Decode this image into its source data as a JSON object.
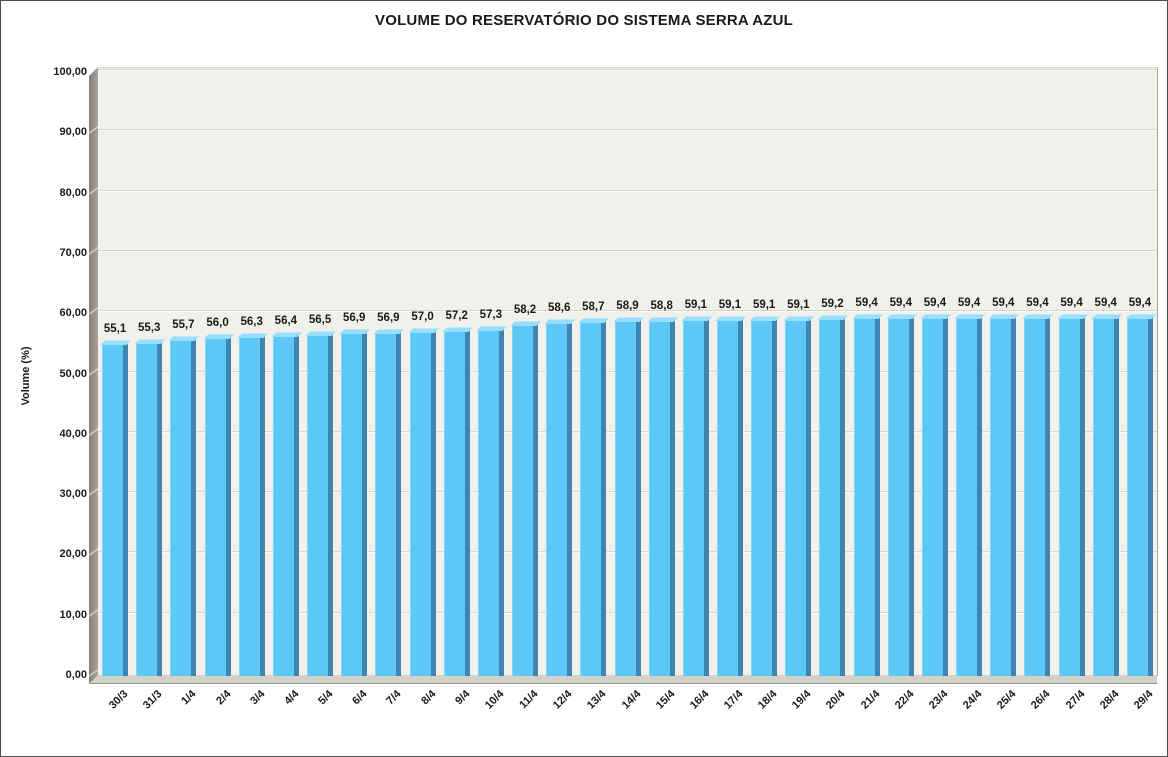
{
  "title": "VOLUME DO RESERVATÓRIO DO SISTEMA SERRA AZUL",
  "colors": {
    "bar_fill": "#5bc8f7",
    "bar_side": "#3f85af",
    "bar_top": "#9adefb",
    "plot_background": "#f2f0ea",
    "wall": "#8d8b83",
    "floor": "#d4d1c9",
    "gridline": "#d8d5cd",
    "text": "#1a1a1a"
  },
  "chart_data": {
    "type": "bar",
    "style": "3d-column",
    "title": "VOLUME DO RESERVATÓRIO DO SISTEMA SERRA AZUL",
    "xlabel": "",
    "ylabel": "Volume (%)",
    "ylim": [
      0,
      100
    ],
    "y_tick_step": 10,
    "y_tick_labels": [
      "0,00",
      "10,00",
      "20,00",
      "30,00",
      "40,00",
      "50,00",
      "60,00",
      "70,00",
      "80,00",
      "90,00",
      "100,00"
    ],
    "grid": true,
    "legend": "none",
    "categories": [
      "30/3",
      "31/3",
      "1/4",
      "2/4",
      "3/4",
      "4/4",
      "5/4",
      "6/4",
      "7/4",
      "8/4",
      "9/4",
      "10/4",
      "11/4",
      "12/4",
      "13/4",
      "14/4",
      "15/4",
      "16/4",
      "17/4",
      "18/4",
      "19/4",
      "20/4",
      "21/4",
      "22/4",
      "23/4",
      "24/4",
      "25/4",
      "26/4",
      "27/4",
      "28/4",
      "29/4"
    ],
    "values": [
      55.1,
      55.3,
      55.7,
      56.0,
      56.3,
      56.4,
      56.5,
      56.9,
      56.9,
      57.0,
      57.2,
      57.3,
      58.2,
      58.6,
      58.7,
      58.9,
      58.8,
      59.1,
      59.1,
      59.1,
      59.1,
      59.2,
      59.4,
      59.4,
      59.4,
      59.4,
      59.4,
      59.4,
      59.4,
      59.4,
      59.4
    ],
    "value_labels": [
      "55,1",
      "55,3",
      "55,7",
      "56,0",
      "56,3",
      "56,4",
      "56,5",
      "56,9",
      "56,9",
      "57,0",
      "57,2",
      "57,3",
      "58,2",
      "58,6",
      "58,7",
      "58,9",
      "58,8",
      "59,1",
      "59,1",
      "59,1",
      "59,1",
      "59,2",
      "59,4",
      "59,4",
      "59,4",
      "59,4",
      "59,4",
      "59,4",
      "59,4",
      "59,4",
      "59,4"
    ]
  }
}
